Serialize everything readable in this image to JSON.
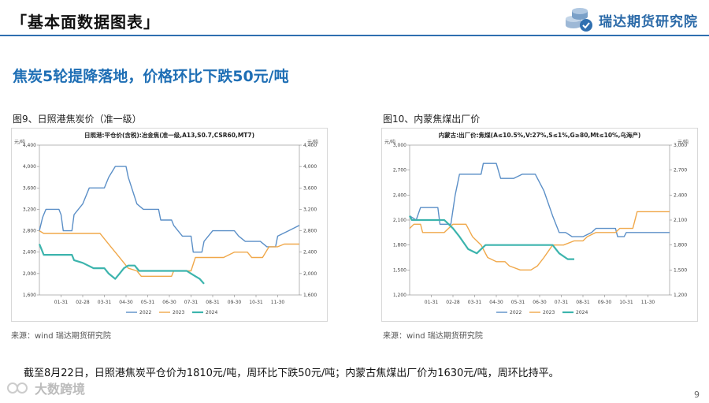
{
  "header": {
    "title": "「基本面数据图表」",
    "brand": "瑞达期货研究院"
  },
  "subtitle": "焦炭5轮提降落地，价格环比下跌50元/吨",
  "figures": [
    {
      "label": "图9、日照港焦炭价（准一级）",
      "source": "来源：wind   瑞达期货研究院"
    },
    {
      "label": "图10、内蒙焦煤出厂价",
      "source": "来源：wind   瑞达期货研究院"
    }
  ],
  "summary": "截至8月22日，日照港焦炭平仓价为1810元/吨，周环比下跌50元/吨；内蒙古焦煤出厂价为1630元/吨，周环比持平。",
  "page_number": "9",
  "watermark": "大数跨境",
  "colors": {
    "s2022": "#5b8fc7",
    "s2023": "#f0a84a",
    "s2024": "#3cb4ad"
  },
  "chart_data": [
    {
      "type": "line",
      "title": "日照港:平仓价(含税):冶金焦(准一级,A13,S0.7,CSR60,MT7)",
      "unit_left": "元/吨",
      "unit_right": "元/吨",
      "ylim": [
        1600,
        4400
      ],
      "yticks": [
        1600,
        2000,
        2400,
        2800,
        3200,
        3600,
        4000,
        4400
      ],
      "ytick_labels": [
        "1,600",
        "2,000",
        "2,400",
        "2,800",
        "3,200",
        "3,600",
        "4,000",
        "4,400"
      ],
      "xlim": [
        0,
        12
      ],
      "xticks": [
        1,
        2,
        3,
        4,
        5,
        6,
        7,
        8,
        9,
        10,
        11
      ],
      "xtick_labels": [
        "01-31",
        "02-28",
        "03-31",
        "04-30",
        "05-31",
        "06-30",
        "07-31",
        "08-31",
        "09-30",
        "10-31",
        "11-30"
      ],
      "legend": [
        "2022",
        "2023",
        "2024"
      ],
      "series": [
        {
          "name": "2022",
          "points": [
            [
              0.0,
              2800
            ],
            [
              0.15,
              3050
            ],
            [
              0.3,
              3200
            ],
            [
              0.9,
              3200
            ],
            [
              1.0,
              3100
            ],
            [
              1.1,
              2800
            ],
            [
              1.5,
              2800
            ],
            [
              1.6,
              3100
            ],
            [
              2.0,
              3300
            ],
            [
              2.3,
              3600
            ],
            [
              3.0,
              3600
            ],
            [
              3.2,
              3800
            ],
            [
              3.5,
              4000
            ],
            [
              4.0,
              4000
            ],
            [
              4.1,
              3800
            ],
            [
              4.5,
              3300
            ],
            [
              4.8,
              3200
            ],
            [
              5.5,
              3200
            ],
            [
              5.6,
              3000
            ],
            [
              6.1,
              3000
            ],
            [
              6.2,
              2900
            ],
            [
              6.6,
              2700
            ],
            [
              7.0,
              2700
            ],
            [
              7.1,
              2400
            ],
            [
              7.5,
              2400
            ],
            [
              7.6,
              2600
            ],
            [
              8.0,
              2800
            ],
            [
              9.0,
              2800
            ],
            [
              9.2,
              2700
            ],
            [
              9.5,
              2600
            ],
            [
              10.2,
              2600
            ],
            [
              10.5,
              2500
            ],
            [
              10.9,
              2500
            ],
            [
              11.0,
              2700
            ],
            [
              11.5,
              2800
            ],
            [
              12.0,
              2900
            ]
          ]
        },
        {
          "name": "2023",
          "points": [
            [
              0.0,
              2800
            ],
            [
              0.2,
              2750
            ],
            [
              2.8,
              2750
            ],
            [
              3.0,
              2650
            ],
            [
              3.3,
              2500
            ],
            [
              3.6,
              2350
            ],
            [
              3.9,
              2200
            ],
            [
              4.1,
              2100
            ],
            [
              4.5,
              2050
            ],
            [
              4.7,
              1950
            ],
            [
              6.1,
              1950
            ],
            [
              6.2,
              2050
            ],
            [
              7.0,
              2050
            ],
            [
              7.2,
              2300
            ],
            [
              7.5,
              2300
            ],
            [
              8.0,
              2300
            ],
            [
              8.5,
              2300
            ],
            [
              9.0,
              2400
            ],
            [
              9.6,
              2400
            ],
            [
              9.8,
              2300
            ],
            [
              10.3,
              2300
            ],
            [
              10.6,
              2500
            ],
            [
              11.0,
              2500
            ],
            [
              11.3,
              2550
            ],
            [
              12.0,
              2550
            ]
          ]
        },
        {
          "name": "2024",
          "points": [
            [
              0.0,
              2550
            ],
            [
              0.1,
              2450
            ],
            [
              0.2,
              2350
            ],
            [
              1.5,
              2350
            ],
            [
              1.6,
              2250
            ],
            [
              2.0,
              2200
            ],
            [
              2.5,
              2100
            ],
            [
              3.0,
              2100
            ],
            [
              3.2,
              2000
            ],
            [
              3.5,
              1900
            ],
            [
              3.7,
              2000
            ],
            [
              3.9,
              2100
            ],
            [
              4.1,
              2150
            ],
            [
              4.4,
              2150
            ],
            [
              4.6,
              2050
            ],
            [
              6.8,
              2050
            ],
            [
              7.0,
              2000
            ],
            [
              7.2,
              1950
            ],
            [
              7.4,
              1900
            ],
            [
              7.6,
              1810
            ]
          ]
        }
      ]
    },
    {
      "type": "line",
      "title": "内蒙古:出厂价:焦煤(A≤10.5%,V:27%,S≤1%,G≥80,Mt≤10%,乌海产)",
      "unit_left": "元/吨",
      "unit_right": "元/吨",
      "ylim": [
        1200,
        3000
      ],
      "yticks": [
        1200,
        1500,
        1800,
        2100,
        2400,
        2700,
        3000
      ],
      "ytick_labels": [
        "1,200",
        "1,500",
        "1,800",
        "2,100",
        "2,400",
        "2,700",
        "3,000"
      ],
      "xlim": [
        0,
        12
      ],
      "xticks": [
        1,
        2,
        3,
        4,
        5,
        6,
        7,
        8,
        9,
        10,
        11
      ],
      "xtick_labels": [
        "01-31",
        "02-28",
        "03-31",
        "04-30",
        "05-31",
        "06-30",
        "07-31",
        "08-31",
        "09-30",
        "10-31",
        "11-30"
      ],
      "legend": [
        "2022",
        "2023",
        "2024"
      ],
      "series": [
        {
          "name": "2022",
          "points": [
            [
              0.0,
              2150
            ],
            [
              0.3,
              2100
            ],
            [
              0.5,
              2250
            ],
            [
              1.3,
              2250
            ],
            [
              1.4,
              2050
            ],
            [
              1.9,
              2050
            ],
            [
              2.1,
              2400
            ],
            [
              2.3,
              2650
            ],
            [
              3.3,
              2650
            ],
            [
              3.4,
              2780
            ],
            [
              4.0,
              2780
            ],
            [
              4.2,
              2600
            ],
            [
              4.8,
              2600
            ],
            [
              5.2,
              2650
            ],
            [
              5.8,
              2650
            ],
            [
              6.2,
              2450
            ],
            [
              6.6,
              2150
            ],
            [
              6.9,
              1950
            ],
            [
              7.2,
              1950
            ],
            [
              7.5,
              1900
            ],
            [
              8.0,
              1900
            ],
            [
              8.4,
              1950
            ],
            [
              8.6,
              2000
            ],
            [
              9.5,
              2000
            ],
            [
              9.6,
              1900
            ],
            [
              9.9,
              1900
            ],
            [
              10.0,
              1950
            ],
            [
              12.0,
              1950
            ]
          ]
        },
        {
          "name": "2023",
          "points": [
            [
              0.0,
              2000
            ],
            [
              0.2,
              2050
            ],
            [
              0.5,
              2050
            ],
            [
              0.6,
              1950
            ],
            [
              1.6,
              1950
            ],
            [
              2.0,
              2050
            ],
            [
              2.6,
              2050
            ],
            [
              2.9,
              1900
            ],
            [
              3.3,
              1800
            ],
            [
              3.6,
              1650
            ],
            [
              4.0,
              1600
            ],
            [
              4.4,
              1600
            ],
            [
              4.6,
              1550
            ],
            [
              5.1,
              1500
            ],
            [
              5.6,
              1500
            ],
            [
              5.9,
              1550
            ],
            [
              6.2,
              1650
            ],
            [
              6.6,
              1800
            ],
            [
              7.1,
              1800
            ],
            [
              7.6,
              1850
            ],
            [
              8.0,
              1850
            ],
            [
              8.2,
              1900
            ],
            [
              8.6,
              1950
            ],
            [
              9.5,
              1950
            ],
            [
              9.7,
              2000
            ],
            [
              10.3,
              2000
            ],
            [
              10.5,
              2200
            ],
            [
              12.0,
              2200
            ]
          ]
        },
        {
          "name": "2024",
          "points": [
            [
              0.0,
              2150
            ],
            [
              0.1,
              2100
            ],
            [
              1.6,
              2100
            ],
            [
              2.0,
              2000
            ],
            [
              2.3,
              1900
            ],
            [
              2.7,
              1750
            ],
            [
              3.1,
              1700
            ],
            [
              3.3,
              1750
            ],
            [
              3.5,
              1800
            ],
            [
              6.6,
              1800
            ],
            [
              6.9,
              1700
            ],
            [
              7.3,
              1630
            ],
            [
              7.6,
              1630
            ]
          ]
        }
      ]
    }
  ]
}
